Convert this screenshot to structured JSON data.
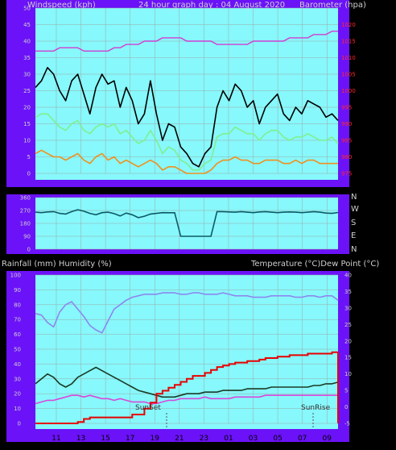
{
  "header": {
    "left_label": "Windspeed (kph)",
    "center_label": "24 hour graph day : 04 August 2020",
    "right_label": "Barometer (hpa)"
  },
  "middle": {
    "compass": [
      "N",
      "W",
      "S",
      "E",
      "N"
    ]
  },
  "bottom": {
    "left_label": "Rainfall (mm)  Humidity (%)",
    "right_label": "Temperature (°C)Dew Point (°C)",
    "sunset_label": "SunSet",
    "sunrise_label": "SunRise"
  },
  "colors": {
    "background": "#000000",
    "plot_bg": "#87f8fb",
    "frame": "#6b12f8",
    "gust": "#000000",
    "avg_wind": "#7ef090",
    "min_wind": "#f0901e",
    "barometer": "#d23cd2",
    "direction": "#0e5a66",
    "temperature": "#1b3a26",
    "dewpoint": "#d84adb",
    "humidity": "#8d87f0",
    "rain": "#e80000"
  },
  "chart_data": [
    {
      "type": "line",
      "id": "wind",
      "x_ticks": [
        "11",
        "13",
        "15",
        "17",
        "19",
        "21",
        "23",
        "01",
        "03",
        "05",
        "07",
        "09"
      ],
      "y_left_ticks": [
        0,
        5,
        10,
        15,
        20,
        25,
        30,
        35,
        40,
        45,
        50
      ],
      "y_right_ticks": [
        975,
        980,
        985,
        990,
        995,
        1000,
        1005,
        1010,
        1015,
        1020
      ],
      "ylim_left": [
        0,
        50
      ],
      "ylim_right": [
        975,
        1025
      ],
      "series": [
        {
          "name": "gust",
          "axis": "left",
          "y": [
            26,
            28,
            32,
            30,
            25,
            22,
            28,
            30,
            24,
            18,
            26,
            30,
            27,
            28,
            20,
            26,
            22,
            15,
            18,
            28,
            18,
            10,
            15,
            14,
            8,
            6,
            3,
            2,
            6,
            8,
            20,
            25,
            22,
            27,
            25,
            20,
            22,
            15,
            20,
            22,
            24,
            18,
            16,
            20,
            18,
            22,
            21,
            20,
            17,
            18,
            16
          ]
        },
        {
          "name": "avg",
          "axis": "left",
          "y": [
            17,
            18,
            18,
            16,
            14,
            13,
            15,
            16,
            13,
            12,
            14,
            15,
            14,
            15,
            12,
            13,
            11,
            9,
            10,
            13,
            10,
            6,
            8,
            7,
            4,
            3,
            1,
            1,
            3,
            4,
            11,
            12,
            12,
            14,
            13,
            12,
            12,
            10,
            12,
            13,
            13,
            11,
            10,
            11,
            11,
            12,
            11,
            10,
            10,
            11,
            9
          ]
        },
        {
          "name": "min",
          "axis": "left",
          "y": [
            6,
            7,
            6,
            5,
            5,
            4,
            5,
            6,
            4,
            3,
            5,
            6,
            4,
            5,
            3,
            4,
            3,
            2,
            3,
            4,
            3,
            1,
            2,
            2,
            1,
            0,
            0,
            0,
            0,
            1,
            3,
            4,
            4,
            5,
            4,
            4,
            3,
            3,
            4,
            4,
            4,
            3,
            3,
            4,
            3,
            4,
            4,
            3,
            3,
            3,
            3
          ]
        },
        {
          "name": "barometer",
          "axis": "right",
          "y": [
            1012,
            1012,
            1012,
            1012,
            1013,
            1013,
            1013,
            1013,
            1012,
            1012,
            1012,
            1012,
            1012,
            1013,
            1013,
            1014,
            1014,
            1014,
            1015,
            1015,
            1015,
            1016,
            1016,
            1016,
            1016,
            1015,
            1015,
            1015,
            1015,
            1015,
            1014,
            1014,
            1014,
            1014,
            1014,
            1014,
            1015,
            1015,
            1015,
            1015,
            1015,
            1015,
            1016,
            1016,
            1016,
            1016,
            1017,
            1017,
            1017,
            1018,
            1018
          ]
        }
      ]
    },
    {
      "type": "line",
      "id": "direction",
      "x_ticks": [
        "11",
        "13",
        "15",
        "17",
        "19",
        "21",
        "23",
        "01",
        "03",
        "05",
        "07",
        "09"
      ],
      "y_ticks": [
        0,
        90,
        180,
        270,
        360
      ],
      "ylim": [
        0,
        360
      ],
      "series": [
        {
          "name": "direction",
          "y": [
            258,
            255,
            260,
            262,
            250,
            245,
            262,
            275,
            265,
            250,
            240,
            255,
            258,
            248,
            232,
            252,
            240,
            220,
            230,
            245,
            250,
            255,
            254,
            254,
            90,
            90,
            90,
            90,
            90,
            90,
            262,
            262,
            260,
            258,
            262,
            258,
            255,
            260,
            262,
            258,
            255,
            258,
            260,
            258,
            255,
            258,
            262,
            258,
            252,
            250,
            256
          ]
        }
      ]
    },
    {
      "type": "line",
      "id": "temperature",
      "x_ticks": [
        "11",
        "13",
        "15",
        "17",
        "19",
        "21",
        "23",
        "01",
        "03",
        "05",
        "07",
        "09"
      ],
      "y_left_ticks": [
        0,
        10,
        20,
        30,
        40,
        50,
        60,
        70,
        80,
        90,
        100
      ],
      "y_right_ticks": [
        -5,
        0,
        5,
        10,
        15,
        20,
        25,
        30,
        35,
        40
      ],
      "ylim_left": [
        0,
        100
      ],
      "ylim_right": [
        -5,
        40
      ],
      "series": [
        {
          "name": "humidity",
          "axis": "left",
          "y": [
            74,
            73,
            68,
            65,
            75,
            80,
            82,
            77,
            72,
            66,
            63,
            61,
            69,
            77,
            80,
            83,
            85,
            86,
            87,
            87,
            87,
            88,
            88,
            88,
            87,
            87,
            88,
            88,
            87,
            87,
            87,
            88,
            87,
            86,
            86,
            86,
            85,
            85,
            85,
            86,
            86,
            86,
            86,
            85,
            85,
            86,
            86,
            85,
            86,
            86,
            83
          ]
        },
        {
          "name": "temperature",
          "axis": "right",
          "y": [
            7.0,
            8.5,
            10.0,
            9.0,
            7.0,
            6.0,
            7.0,
            9.0,
            10.0,
            11.0,
            12.0,
            11.0,
            10.0,
            9.0,
            8.0,
            7.0,
            6.0,
            5.0,
            4.5,
            4.0,
            3.5,
            3.0,
            3.0,
            3.0,
            3.5,
            4.0,
            4.0,
            4.0,
            4.5,
            4.5,
            4.5,
            5.0,
            5.0,
            5.0,
            5.0,
            5.5,
            5.5,
            5.5,
            5.5,
            6.0,
            6.0,
            6.0,
            6.0,
            6.0,
            6.0,
            6.0,
            6.5,
            6.5,
            7.0,
            7.0,
            7.5
          ]
        },
        {
          "name": "dewpoint",
          "axis": "right",
          "y": [
            1.0,
            1.5,
            2.0,
            2.0,
            2.5,
            3.0,
            3.5,
            3.5,
            3.0,
            3.5,
            3.0,
            2.5,
            2.5,
            2.0,
            2.5,
            2.0,
            1.5,
            1.5,
            1.5,
            1.0,
            1.0,
            1.5,
            2.0,
            2.0,
            2.5,
            2.5,
            2.5,
            2.5,
            3.0,
            2.5,
            2.5,
            2.5,
            2.5,
            3.0,
            3.0,
            3.0,
            3.0,
            3.0,
            3.5,
            3.5,
            3.5,
            3.5,
            3.5,
            3.5,
            3.5,
            3.5,
            3.5,
            3.5,
            3.5,
            3.5,
            3.5
          ]
        },
        {
          "name": "rain",
          "axis": "left",
          "y": [
            0,
            0,
            0,
            0,
            0,
            0,
            0,
            0.5,
            1.5,
            2,
            2,
            2,
            2,
            2,
            2,
            2,
            3,
            3,
            5,
            7,
            10,
            11,
            12,
            13,
            14,
            15,
            16,
            16,
            17,
            18,
            19,
            19.5,
            20,
            20.5,
            20.5,
            21,
            21,
            21.5,
            22,
            22,
            22.5,
            22.5,
            23,
            23,
            23,
            23.5,
            23.5,
            23.5,
            23.5,
            24,
            24
          ]
        }
      ]
    }
  ]
}
